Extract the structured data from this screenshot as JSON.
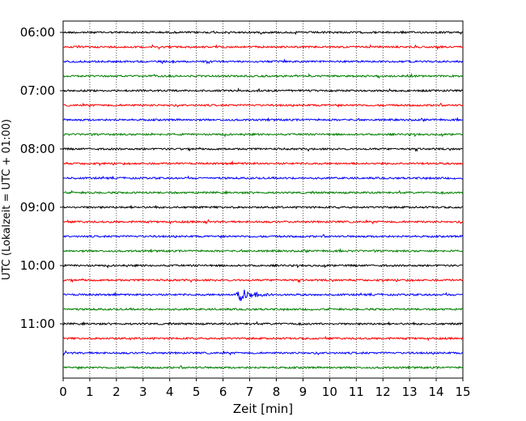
{
  "chart_data": {
    "type": "line",
    "title": "",
    "xlabel": "Zeit  [min]",
    "ylabel": "UTC (Lokalzeit = UTC + 01:00)",
    "xlim": [
      0,
      15
    ],
    "x_ticks": [
      "0",
      "1",
      "2",
      "3",
      "4",
      "5",
      "6",
      "7",
      "8",
      "9",
      "10",
      "11",
      "12",
      "13",
      "14",
      "15"
    ],
    "y_ticks": [
      {
        "label": "06:00",
        "row": 0
      },
      {
        "label": "07:00",
        "row": 4
      },
      {
        "label": "08:00",
        "row": 8
      },
      {
        "label": "09:00",
        "row": 12
      },
      {
        "label": "10:00",
        "row": 16
      },
      {
        "label": "11:00",
        "row": 20
      }
    ],
    "grid": {
      "x": true,
      "y": false
    },
    "row_interval_minutes": 15,
    "row_colors": [
      "#000000",
      "#ff0000",
      "#0000ff",
      "#008000"
    ],
    "traces": [
      {
        "start": "06:00",
        "color": "#000000"
      },
      {
        "start": "06:15",
        "color": "#ff0000"
      },
      {
        "start": "06:30",
        "color": "#0000ff"
      },
      {
        "start": "06:45",
        "color": "#008000"
      },
      {
        "start": "07:00",
        "color": "#000000"
      },
      {
        "start": "07:15",
        "color": "#ff0000"
      },
      {
        "start": "07:30",
        "color": "#0000ff"
      },
      {
        "start": "07:45",
        "color": "#008000"
      },
      {
        "start": "08:00",
        "color": "#000000"
      },
      {
        "start": "08:15",
        "color": "#ff0000"
      },
      {
        "start": "08:30",
        "color": "#0000ff"
      },
      {
        "start": "08:45",
        "color": "#008000"
      },
      {
        "start": "09:00",
        "color": "#000000"
      },
      {
        "start": "09:15",
        "color": "#ff0000"
      },
      {
        "start": "09:30",
        "color": "#0000ff"
      },
      {
        "start": "09:45",
        "color": "#008000"
      },
      {
        "start": "10:00",
        "color": "#000000"
      },
      {
        "start": "10:15",
        "color": "#ff0000"
      },
      {
        "start": "10:30",
        "color": "#0000ff",
        "event_minute": 6.6
      },
      {
        "start": "10:45",
        "color": "#008000"
      },
      {
        "start": "11:00",
        "color": "#000000"
      },
      {
        "start": "11:15",
        "color": "#ff0000"
      },
      {
        "start": "11:30",
        "color": "#0000ff"
      },
      {
        "start": "11:45",
        "color": "#008000"
      }
    ]
  }
}
